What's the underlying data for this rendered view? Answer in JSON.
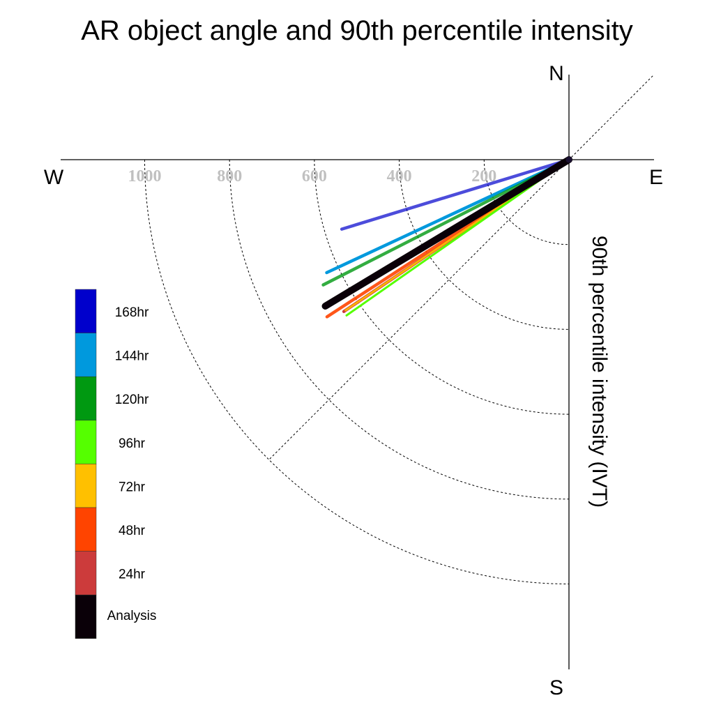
{
  "chart_data": {
    "type": "polar-vector",
    "title": "AR object angle and 90th percentile intensity",
    "ylabel": "90th percentile intensity (IVT)",
    "compass": {
      "north": "N",
      "south": "S",
      "east": "E",
      "west": "W"
    },
    "radial_ticks": [
      {
        "value": 200,
        "label": "200"
      },
      {
        "value": 400,
        "label": "400"
      },
      {
        "value": 600,
        "label": "600"
      },
      {
        "value": 800,
        "label": "800"
      },
      {
        "value": 1000,
        "label": "1000"
      }
    ],
    "rlim": [
      0,
      1200
    ],
    "grid": "dashed arcs and 45-degree diagonal",
    "legend_position": "left",
    "series": [
      {
        "name": "168hr",
        "color": "#0000cc",
        "intensity": 560,
        "angle_deg_below_west": 17,
        "opacity": 0.7
      },
      {
        "name": "144hr",
        "color": "#0099dd",
        "intensity": 630,
        "angle_deg_below_west": 25,
        "opacity": 1
      },
      {
        "name": "120hr",
        "color": "#009911",
        "intensity": 650,
        "angle_deg_below_west": 27,
        "opacity": 0.8
      },
      {
        "name": "96hr",
        "color": "#55ff00",
        "intensity": 640,
        "angle_deg_below_west": 35,
        "opacity": 1
      },
      {
        "name": "72hr",
        "color": "#ffc000",
        "intensity": 635,
        "angle_deg_below_west": 34,
        "opacity": 0.9
      },
      {
        "name": "48hr",
        "color": "#ff4400",
        "intensity": 680,
        "angle_deg_below_west": 33,
        "opacity": 0.9
      },
      {
        "name": "24hr",
        "color": "#cc3b3b",
        "intensity": 640,
        "angle_deg_below_west": 34,
        "opacity": 1
      },
      {
        "name": "Analysis",
        "color": "#0a0008",
        "intensity": 670,
        "angle_deg_below_west": 31,
        "opacity": 1
      }
    ]
  }
}
